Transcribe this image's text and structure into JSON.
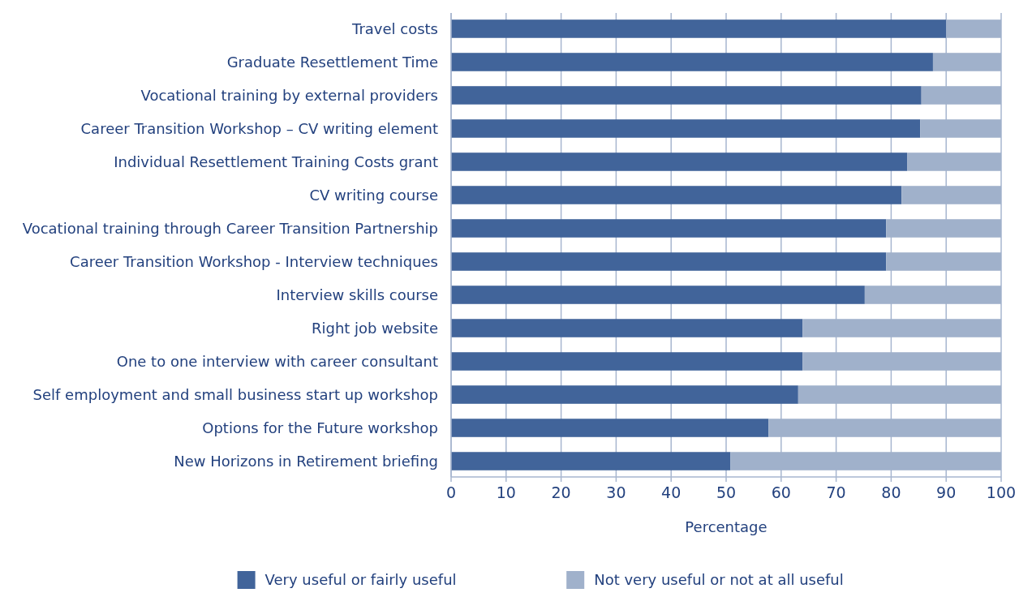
{
  "chart_data": {
    "type": "bar",
    "orientation": "horizontal",
    "stacked": true,
    "categories": [
      "Travel costs",
      "Graduate Resettlement Time",
      "Vocational training by external providers",
      "Career Transition Workshop – CV writing element",
      "Individual Resettlement Training Costs grant",
      "CV writing course",
      "Vocational training through Career Transition Partnership",
      "Career Transition Workshop - Interview techniques",
      "Interview skills course",
      "Right job website",
      "One to one interview with career consultant",
      "Self employment and small business start up workshop",
      "Options for the Future workshop",
      "New Horizons in Retirement briefing"
    ],
    "series": [
      {
        "name": "Very useful or fairly useful",
        "color": "#41649a",
        "values": [
          90,
          87.6,
          85.5,
          85.3,
          82.9,
          81.9,
          79.1,
          79.1,
          75.2,
          63.9,
          63.9,
          63.1,
          57.7,
          50.8
        ]
      },
      {
        "name": "Not very useful or not at all useful",
        "color": "#a0b1cb",
        "values": [
          10,
          12.4,
          14.5,
          14.7,
          17.1,
          18.1,
          20.9,
          20.9,
          24.8,
          36.1,
          36.1,
          36.9,
          42.3,
          49.2
        ]
      }
    ],
    "xlabel": "Percentage",
    "xlim": [
      0,
      100
    ],
    "xticks": [
      0,
      10,
      20,
      30,
      40,
      50,
      60,
      70,
      80,
      90,
      100
    ],
    "grid": "x",
    "legend": "bottom"
  }
}
